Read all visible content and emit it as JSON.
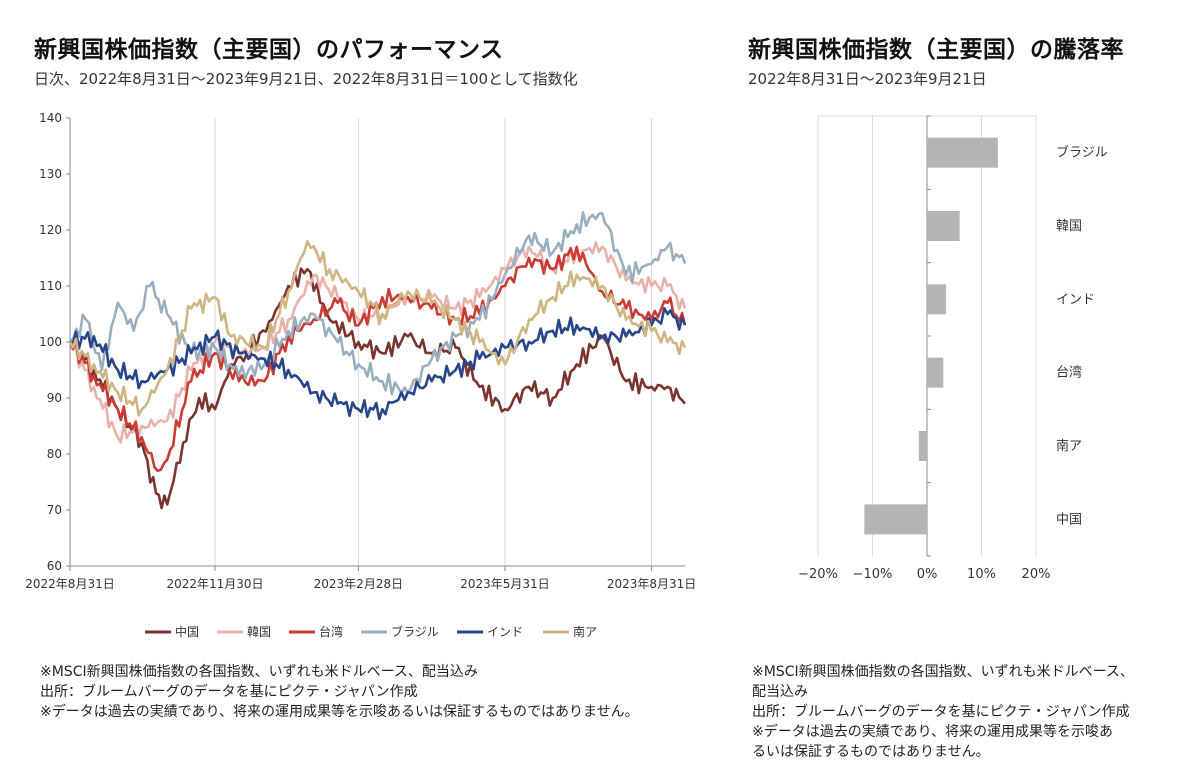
{
  "left": {
    "title": "新興国株価指数（主要国）のパフォーマンス",
    "subtitle": "日次、2022年8月31日～2023年9月21日、2022年8月31日＝100として指数化",
    "notes": [
      "※MSCI新興国株価指数の各国指数、いずれも米ドルベース、配当込み",
      "出所：ブルームバーグのデータを基にピクテ・ジャパン作成",
      "※データは過去の実績であり、将来の運用成果等を示唆あるいは保証するものではありません。"
    ]
  },
  "right": {
    "title": "新興国株価指数（主要国）の騰落率",
    "subtitle": "2022年8月31日～2023年9月21日",
    "notes": [
      "※MSCI新興国株価指数の各国指数、いずれも米ドルベース、",
      "配当込み",
      "出所：ブルームバーグのデータを基にピクテ・ジャパン作成",
      "※データは過去の実績であり、将来の運用成果等を示唆あ",
      "るいは保証するものではありません。"
    ]
  },
  "chart_data": [
    {
      "type": "line",
      "ylim": [
        60,
        140
      ],
      "yticks": [
        60,
        70,
        80,
        90,
        100,
        110,
        120,
        130,
        140
      ],
      "xlim": [
        "2022-08-31",
        "2023-09-21"
      ],
      "xticks": [
        {
          "date": "2022-08-31",
          "label": "2022年8月31日"
        },
        {
          "date": "2022-11-30",
          "label": "2022年11月30日"
        },
        {
          "date": "2023-02-28",
          "label": "2023年2月28日"
        },
        {
          "date": "2023-05-31",
          "label": "2023年5月31日"
        },
        {
          "date": "2023-08-31",
          "label": "2023年8月31日"
        }
      ],
      "grid": "vertical",
      "legend": "bottom",
      "series": [
        {
          "name": "中国",
          "color": "#7b3530",
          "x": [
            "2022-08-31",
            "2022-09-15",
            "2022-09-30",
            "2022-10-15",
            "2022-10-24",
            "2022-10-31",
            "2022-11-10",
            "2022-11-20",
            "2022-11-30",
            "2022-12-10",
            "2022-12-20",
            "2023-01-05",
            "2023-01-15",
            "2023-01-27",
            "2023-02-10",
            "2023-02-28",
            "2023-03-15",
            "2023-03-31",
            "2023-04-15",
            "2023-04-30",
            "2023-05-15",
            "2023-05-31",
            "2023-06-15",
            "2023-06-30",
            "2023-07-15",
            "2023-07-31",
            "2023-08-15",
            "2023-08-31",
            "2023-09-10",
            "2023-09-21"
          ],
          "y": [
            100,
            95,
            88,
            82,
            73,
            71,
            82,
            90,
            88,
            96,
            98,
            104,
            110,
            113,
            104,
            100,
            98,
            101,
            98,
            99,
            92,
            88,
            92,
            90,
            96,
            101,
            93,
            92,
            92,
            89
          ]
        },
        {
          "name": "韓国",
          "color": "#e8b1aa",
          "x": [
            "2022-08-31",
            "2022-09-15",
            "2022-09-30",
            "2022-10-15",
            "2022-10-31",
            "2022-11-15",
            "2022-11-30",
            "2022-12-15",
            "2022-12-31",
            "2023-01-15",
            "2023-01-31",
            "2023-02-15",
            "2023-02-28",
            "2023-03-15",
            "2023-03-31",
            "2023-04-15",
            "2023-04-30",
            "2023-05-15",
            "2023-05-31",
            "2023-06-15",
            "2023-06-30",
            "2023-07-15",
            "2023-07-31",
            "2023-08-15",
            "2023-08-31",
            "2023-09-10",
            "2023-09-21"
          ],
          "y": [
            100,
            92,
            83,
            85,
            86,
            95,
            100,
            98,
            99,
            104,
            112,
            108,
            104,
            105,
            108,
            108,
            106,
            108,
            113,
            117,
            113,
            116,
            117,
            111,
            110,
            110,
            106
          ]
        },
        {
          "name": "台湾",
          "color": "#c93b34",
          "x": [
            "2022-08-31",
            "2022-09-15",
            "2022-09-30",
            "2022-10-15",
            "2022-10-25",
            "2022-10-31",
            "2022-11-15",
            "2022-11-30",
            "2022-12-15",
            "2022-12-31",
            "2023-01-15",
            "2023-01-31",
            "2023-02-15",
            "2023-02-28",
            "2023-03-15",
            "2023-03-31",
            "2023-04-15",
            "2023-04-30",
            "2023-05-15",
            "2023-05-31",
            "2023-06-15",
            "2023-06-30",
            "2023-07-15",
            "2023-07-31",
            "2023-08-15",
            "2023-08-31",
            "2023-09-10",
            "2023-09-21"
          ],
          "y": [
            100,
            94,
            88,
            83,
            77,
            79,
            93,
            98,
            93,
            93,
            101,
            104,
            107,
            103,
            108,
            108,
            106,
            104,
            105,
            110,
            115,
            113,
            117,
            109,
            106,
            104,
            107,
            103
          ]
        },
        {
          "name": "ブラジル",
          "color": "#9aaebf",
          "x": [
            "2022-08-31",
            "2022-09-10",
            "2022-09-20",
            "2022-09-30",
            "2022-10-10",
            "2022-10-20",
            "2022-10-31",
            "2022-11-15",
            "2022-11-30",
            "2022-12-15",
            "2022-12-31",
            "2023-01-15",
            "2023-01-31",
            "2023-02-15",
            "2023-02-28",
            "2023-03-15",
            "2023-03-31",
            "2023-04-15",
            "2023-04-30",
            "2023-05-15",
            "2023-05-31",
            "2023-06-15",
            "2023-06-30",
            "2023-07-15",
            "2023-07-31",
            "2023-08-15",
            "2023-08-31",
            "2023-09-10",
            "2023-09-21"
          ],
          "y": [
            100,
            104,
            95,
            107,
            102,
            110,
            105,
            98,
            99,
            94,
            96,
            102,
            105,
            100,
            96,
            93,
            91,
            97,
            101,
            104,
            112,
            119,
            116,
            121,
            123,
            112,
            114,
            117,
            114
          ]
        },
        {
          "name": "インド",
          "color": "#27468a",
          "x": [
            "2022-08-31",
            "2022-09-15",
            "2022-09-30",
            "2022-10-15",
            "2022-10-31",
            "2022-11-15",
            "2022-11-30",
            "2022-12-15",
            "2022-12-31",
            "2023-01-15",
            "2023-01-31",
            "2023-02-15",
            "2023-02-28",
            "2023-03-15",
            "2023-03-31",
            "2023-04-15",
            "2023-04-30",
            "2023-05-15",
            "2023-05-31",
            "2023-06-15",
            "2023-06-30",
            "2023-07-15",
            "2023-07-31",
            "2023-08-15",
            "2023-08-31",
            "2023-09-10",
            "2023-09-21"
          ],
          "y": [
            100,
            101,
            95,
            93,
            95,
            98,
            101,
            98,
            97,
            95,
            91,
            89,
            88,
            88,
            91,
            93,
            95,
            97,
            99,
            100,
            102,
            103,
            101,
            101,
            103,
            105,
            103
          ]
        },
        {
          "name": "南ア",
          "color": "#cfb582",
          "x": [
            "2022-08-31",
            "2022-09-15",
            "2022-09-30",
            "2022-10-15",
            "2022-10-31",
            "2022-11-15",
            "2022-11-30",
            "2022-12-10",
            "2022-12-31",
            "2023-01-15",
            "2023-01-27",
            "2023-02-10",
            "2023-02-28",
            "2023-03-15",
            "2023-03-31",
            "2023-04-15",
            "2023-04-30",
            "2023-05-15",
            "2023-05-31",
            "2023-06-15",
            "2023-06-30",
            "2023-07-15",
            "2023-07-31",
            "2023-08-15",
            "2023-08-31",
            "2023-09-10",
            "2023-09-21"
          ],
          "y": [
            100,
            96,
            91,
            88,
            95,
            106,
            108,
            101,
            99,
            109,
            118,
            113,
            109,
            105,
            109,
            107,
            104,
            100,
            96,
            104,
            108,
            112,
            110,
            104,
            102,
            100,
            99
          ]
        }
      ]
    },
    {
      "type": "bar",
      "orientation": "horizontal",
      "categories": [
        "ブラジル",
        "韓国",
        "インド",
        "台湾",
        "南ア",
        "中国"
      ],
      "values": [
        13,
        6,
        3.5,
        3,
        -1.5,
        -11.5
      ],
      "xlim": [
        -20,
        20
      ],
      "xticks": [
        -20,
        -10,
        0,
        10,
        20
      ],
      "xtick_labels": [
        "−20%",
        "−10%",
        "0%",
        "10%",
        "20%"
      ],
      "color": "#b4b4b4",
      "grid": "vertical"
    }
  ]
}
